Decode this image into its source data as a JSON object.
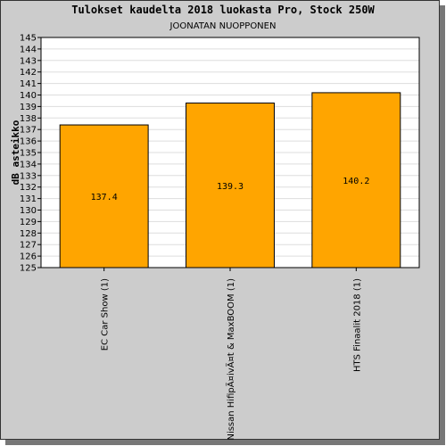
{
  "chart_data": {
    "type": "bar",
    "title": "Tulokset kaudelta 2018 luokasta Pro, Stock 250W",
    "subtitle": "JOONATAN NUOPPONEN",
    "ylabel": "dB asteikko",
    "xlabel": "",
    "ylim": [
      125,
      145
    ],
    "ytick_step": 1,
    "grid": true,
    "categories": [
      "EC Car Show (1)",
      "Nissan HifipÃ¤ivÃ¤t & MaxBOOM (1)",
      "HTS Finaalit 2018 (1)"
    ],
    "values": [
      137.4,
      139.3,
      140.2
    ],
    "value_labels": [
      "137.4",
      "139.3",
      "140.2"
    ],
    "colors": {
      "bar": "#ffa500",
      "bar_border": "#000000",
      "plot_bg": "#ffffff",
      "grid": "#dddddd",
      "frame_bg": "#cccccc"
    }
  }
}
